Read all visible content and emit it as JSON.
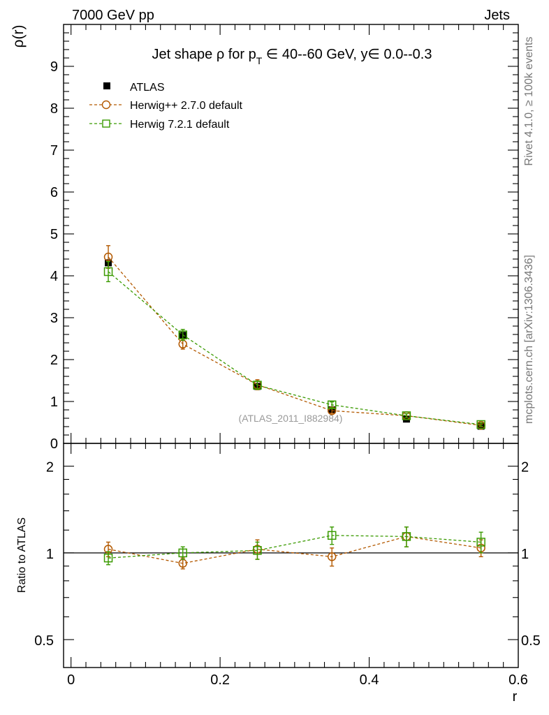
{
  "header": {
    "left": "7000 GeV pp",
    "right": "Jets"
  },
  "side_labels": {
    "rivet": "Rivet 4.1.0, ≥ 100k events",
    "mcplots": "mcplots.cern.ch [arXiv:1306.3436]"
  },
  "watermark": "(ATLAS_2011_I882984)",
  "colors": {
    "data": "#000000",
    "herwigpp": "#b35900",
    "herwig7": "#3a9a00"
  },
  "chart_data": [
    {
      "type": "line",
      "panel": "main",
      "title_parts": {
        "prefix": "Jet shape ρ for p",
        "sub": "T",
        "mid": " ∈ 40--60 GeV, y∈ 0.0--0.3"
      },
      "ylabel": "ρ(r)",
      "xlabel": "r",
      "xlim": [
        -0.01,
        0.6
      ],
      "ylim": [
        0,
        10
      ],
      "yticks": [
        0,
        1,
        2,
        3,
        4,
        5,
        6,
        7,
        8,
        9
      ],
      "ytick_labels": [
        "0",
        "1",
        "2",
        "3",
        "4",
        "5",
        "6",
        "7",
        "8",
        "9"
      ],
      "legend_position": "top-left",
      "x": [
        0.05,
        0.15,
        0.25,
        0.35,
        0.45,
        0.55
      ],
      "series": [
        {
          "name": "ATLAS",
          "key": "data",
          "marker": "filled-square",
          "values": [
            4.31,
            2.58,
            1.36,
            0.8,
            0.58,
            0.41
          ],
          "errors": [
            0.06,
            0.05,
            0.03,
            0.03,
            0.02,
            0.02
          ]
        },
        {
          "name": "Herwig++ 2.7.0 default",
          "key": "herwigpp",
          "marker": "open-circle",
          "values": [
            4.45,
            2.37,
            1.4,
            0.78,
            0.66,
            0.43
          ],
          "errors": [
            0.27,
            0.12,
            0.12,
            0.06,
            0.05,
            0.03
          ]
        },
        {
          "name": "Herwig 7.2.1 default",
          "key": "herwig7",
          "marker": "open-square",
          "values": [
            4.1,
            2.59,
            1.39,
            0.92,
            0.66,
            0.45
          ],
          "errors": [
            0.24,
            0.13,
            0.1,
            0.07,
            0.05,
            0.04
          ]
        }
      ]
    },
    {
      "type": "line",
      "panel": "ratio",
      "ylabel": "Ratio to ATLAS",
      "xlabel": "r",
      "xlim": [
        -0.01,
        0.6
      ],
      "ylim": [
        0.4,
        2.4
      ],
      "log_y": true,
      "yticks": [
        0.5,
        1,
        2
      ],
      "ytick_labels": [
        "0.5",
        "1",
        "2"
      ],
      "xticks": [
        0,
        0.2,
        0.4,
        0.6
      ],
      "xtick_labels": [
        "0",
        "0.2",
        "0.4",
        "0.6"
      ],
      "x": [
        0.05,
        0.15,
        0.25,
        0.35,
        0.45,
        0.55
      ],
      "reference_line": 1,
      "series": [
        {
          "name": "Herwig++ 2.7.0 default",
          "key": "herwigpp",
          "marker": "open-circle",
          "values": [
            1.03,
            0.92,
            1.03,
            0.97,
            1.14,
            1.04
          ],
          "errors": [
            0.06,
            0.04,
            0.08,
            0.07,
            0.09,
            0.07
          ]
        },
        {
          "name": "Herwig 7.2.1 default",
          "key": "herwig7",
          "marker": "open-square",
          "values": [
            0.96,
            1.0,
            1.02,
            1.15,
            1.14,
            1.09
          ],
          "errors": [
            0.05,
            0.05,
            0.07,
            0.08,
            0.09,
            0.09
          ]
        }
      ]
    }
  ]
}
